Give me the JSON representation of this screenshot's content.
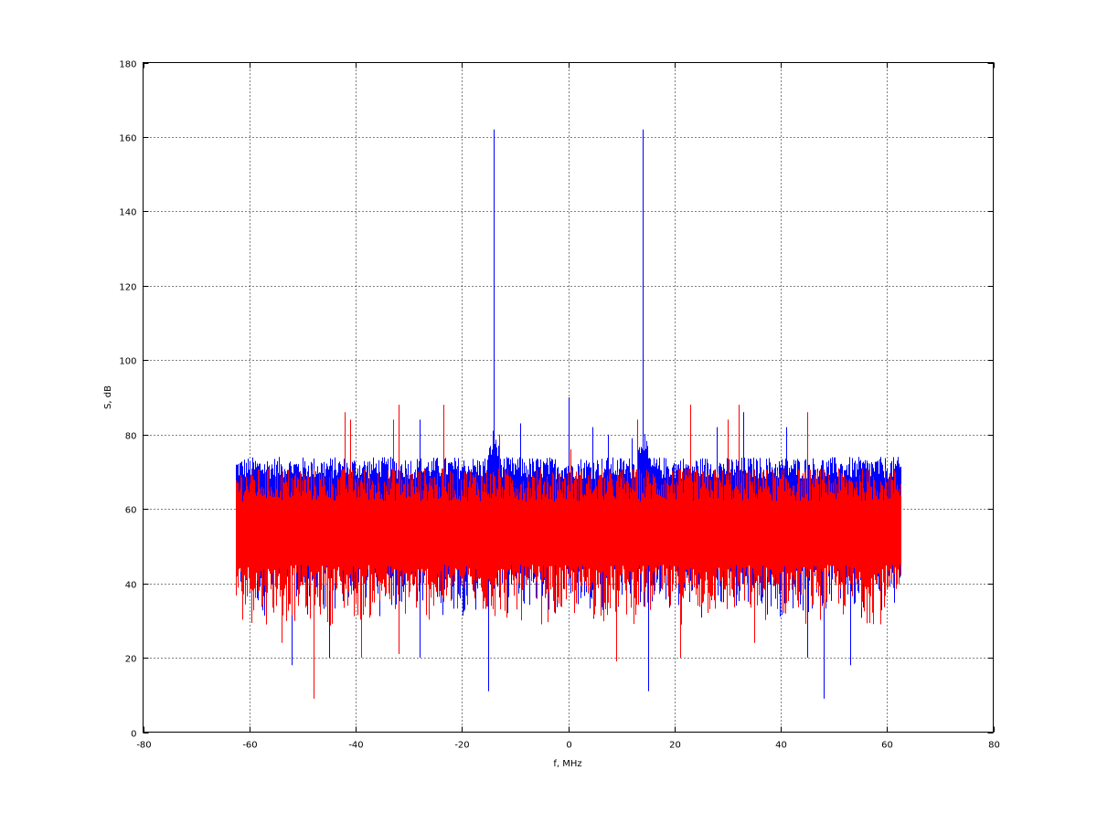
{
  "chart_data": {
    "type": "line",
    "title": "",
    "xlabel": "f, MHz",
    "ylabel": "S, dB",
    "xlim": [
      -80,
      80
    ],
    "ylim": [
      0,
      180
    ],
    "xticks": [
      -80,
      -60,
      -40,
      -20,
      0,
      20,
      40,
      60,
      80
    ],
    "yticks": [
      0,
      20,
      40,
      60,
      80,
      100,
      120,
      140,
      160,
      180
    ],
    "grid": true,
    "x_span": [
      -62.5,
      62.5
    ],
    "series": [
      {
        "color": "#0000ff",
        "noise_band": {
          "upper": [
            68,
            74
          ],
          "lower": [
            30,
            48
          ]
        },
        "bumps": [
          {
            "x": -14,
            "y": 82
          },
          {
            "x": 14,
            "y": 82
          }
        ],
        "spikes": [
          {
            "x": -14,
            "y": 162
          },
          {
            "x": 14,
            "y": 162
          },
          {
            "x": 0,
            "y": 90
          },
          {
            "x": -28,
            "y": 84
          },
          {
            "x": -9,
            "y": 83
          },
          {
            "x": 4.5,
            "y": 82
          },
          {
            "x": 7.5,
            "y": 80
          },
          {
            "x": 28,
            "y": 82
          },
          {
            "x": 33,
            "y": 86
          },
          {
            "x": 41,
            "y": 82
          },
          {
            "x": 12,
            "y": 79
          },
          {
            "x": -52,
            "y": 18
          },
          {
            "x": -15,
            "y": 11
          },
          {
            "x": 15,
            "y": 11
          },
          {
            "x": 48,
            "y": 9
          },
          {
            "x": -28,
            "y": 20
          },
          {
            "x": -45,
            "y": 20
          },
          {
            "x": 53,
            "y": 18
          },
          {
            "x": 45,
            "y": 20
          }
        ]
      },
      {
        "color": "#ff0000",
        "noise_band": {
          "upper": [
            62,
            71
          ],
          "lower": [
            28,
            45
          ]
        },
        "bumps": [],
        "spikes": [
          {
            "x": -42,
            "y": 86
          },
          {
            "x": -41,
            "y": 84
          },
          {
            "x": -32,
            "y": 88
          },
          {
            "x": -33,
            "y": 84
          },
          {
            "x": -23.5,
            "y": 88
          },
          {
            "x": -13,
            "y": 80
          },
          {
            "x": 13,
            "y": 84
          },
          {
            "x": 23,
            "y": 88
          },
          {
            "x": 32,
            "y": 88
          },
          {
            "x": 30,
            "y": 84
          },
          {
            "x": 45,
            "y": 86
          },
          {
            "x": 0.5,
            "y": 76
          },
          {
            "x": -48,
            "y": 9
          },
          {
            "x": -54,
            "y": 24
          },
          {
            "x": -32,
            "y": 21
          },
          {
            "x": 9,
            "y": 19
          },
          {
            "x": 21,
            "y": 20
          },
          {
            "x": -39,
            "y": 20
          },
          {
            "x": 35,
            "y": 24
          }
        ]
      }
    ]
  }
}
